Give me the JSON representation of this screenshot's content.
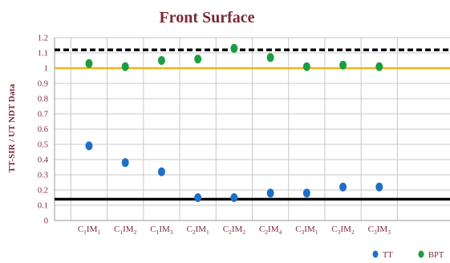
{
  "chart_data": {
    "type": "scatter",
    "title": "Front Surface",
    "ylabel": "TT-SIR / UT NDT Data",
    "xlabel": "",
    "ylim": [
      0,
      1.2
    ],
    "yticks": [
      "0",
      "0.1",
      "0.2",
      "0.3",
      "0.4",
      "0.5",
      "0.6",
      "0.7",
      "0.8",
      "0.9",
      "1",
      "1.1",
      "1.2"
    ],
    "grid": true,
    "legend_position": "bottom-right",
    "categories": [
      {
        "base": "C",
        "b_sub": "1",
        "mid": "IM",
        "m_sub": "1"
      },
      {
        "base": "C",
        "b_sub": "1",
        "mid": "IM",
        "m_sub": "2"
      },
      {
        "base": "C",
        "b_sub": "1",
        "mid": "IM",
        "m_sub": "3"
      },
      {
        "base": "C",
        "b_sub": "2",
        "mid": "IM",
        "m_sub": "1"
      },
      {
        "base": "C",
        "b_sub": "2",
        "mid": "IM",
        "m_sub": "2"
      },
      {
        "base": "C",
        "b_sub": "2",
        "mid": "IM",
        "m_sub": "4"
      },
      {
        "base": "C",
        "b_sub": "3",
        "mid": "IM",
        "m_sub": "1"
      },
      {
        "base": "C",
        "b_sub": "3",
        "mid": "IM",
        "m_sub": "2"
      },
      {
        "base": "C",
        "b_sub": "3",
        "mid": "IM",
        "m_sub": "3"
      }
    ],
    "series": [
      {
        "name": "TT",
        "color": "#1f6fc6",
        "values": [
          0.49,
          0.38,
          0.32,
          0.15,
          0.15,
          0.18,
          0.18,
          0.22,
          0.22
        ]
      },
      {
        "name": "BPT",
        "color": "#1a9e3f",
        "values": [
          1.03,
          1.01,
          1.05,
          1.06,
          1.13,
          1.07,
          1.01,
          1.02,
          1.01
        ]
      }
    ],
    "reference_lines": [
      {
        "value": 1.12,
        "style": "dashed",
        "color": "#000000"
      },
      {
        "value": 1.0,
        "style": "solid",
        "color": "#f2b21c"
      },
      {
        "value": 0.14,
        "style": "solid",
        "color": "#000000"
      }
    ]
  }
}
